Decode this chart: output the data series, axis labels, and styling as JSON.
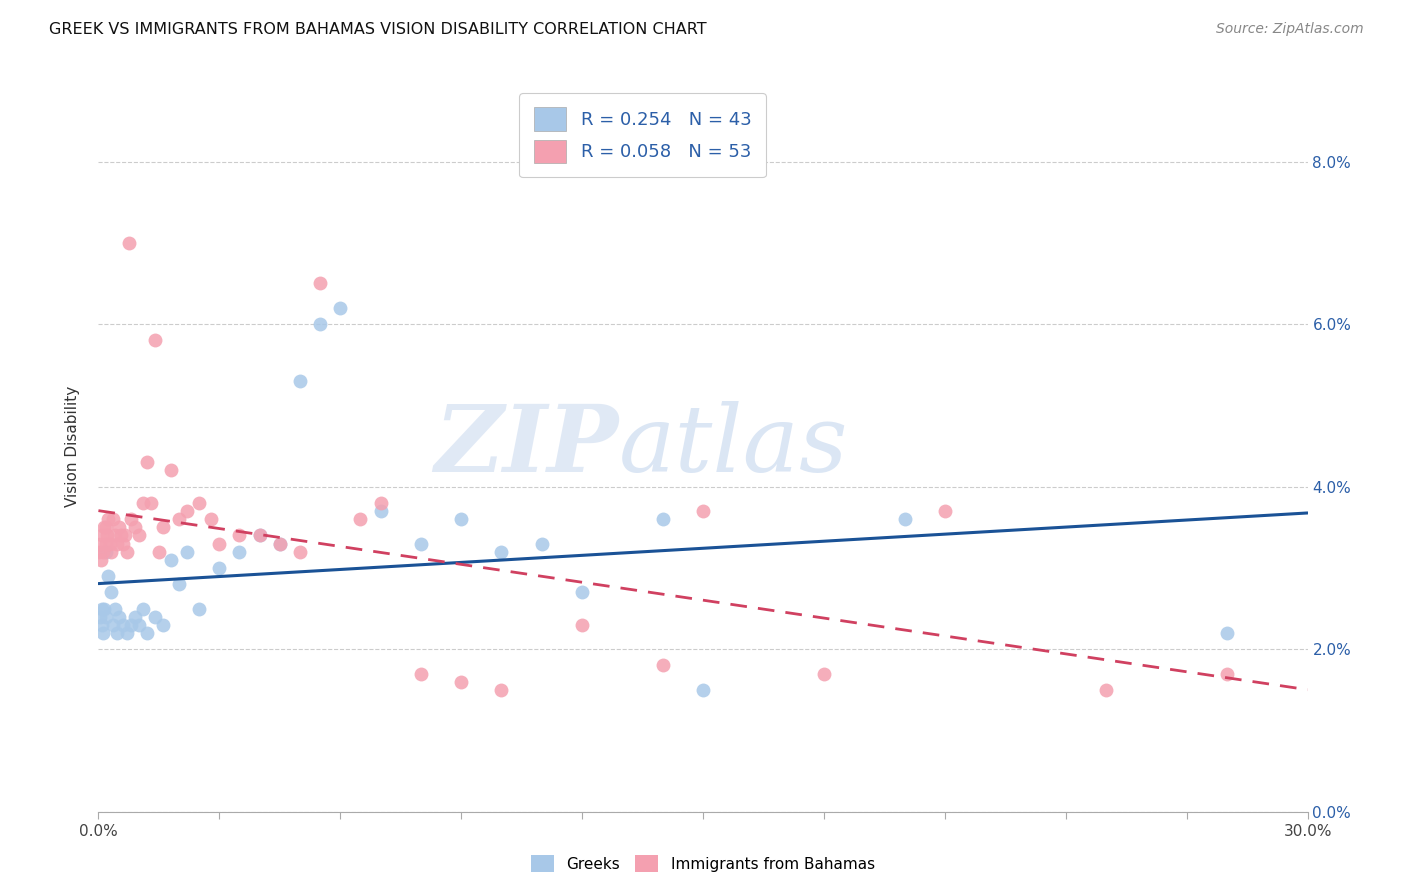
{
  "title": "GREEK VS IMMIGRANTS FROM BAHAMAS VISION DISABILITY CORRELATION CHART",
  "source": "Source: ZipAtlas.com",
  "ylabel": "Vision Disability",
  "xlim": [
    0.0,
    30.0
  ],
  "ylim": [
    0.0,
    9.0
  ],
  "yticks": [
    0.0,
    2.0,
    4.0,
    6.0,
    8.0
  ],
  "watermark_zip": "ZIP",
  "watermark_atlas": "atlas",
  "blue_scatter_color": "#a8c8e8",
  "pink_scatter_color": "#f4a0b0",
  "blue_line_color": "#1a5296",
  "pink_line_color": "#d04060",
  "legend_blue_color": "#a8c8e8",
  "legend_pink_color": "#f4a0b0",
  "greek_x": [
    0.05,
    0.08,
    0.1,
    0.12,
    0.15,
    0.18,
    0.2,
    0.25,
    0.3,
    0.35,
    0.4,
    0.45,
    0.5,
    0.6,
    0.7,
    0.8,
    0.9,
    1.0,
    1.1,
    1.2,
    1.4,
    1.6,
    1.8,
    2.0,
    2.2,
    2.5,
    3.0,
    3.5,
    4.0,
    4.5,
    5.0,
    5.5,
    6.0,
    7.0,
    8.0,
    9.0,
    10.0,
    11.0,
    12.0,
    14.0,
    15.0,
    20.0,
    28.0
  ],
  "greek_y": [
    2.4,
    2.5,
    2.3,
    2.2,
    2.5,
    2.4,
    3.2,
    2.9,
    2.7,
    2.3,
    2.5,
    2.2,
    2.4,
    2.3,
    2.2,
    2.3,
    2.4,
    2.3,
    2.5,
    2.2,
    2.4,
    2.3,
    3.1,
    2.8,
    3.2,
    2.5,
    3.0,
    3.2,
    3.4,
    3.3,
    5.3,
    6.0,
    6.2,
    3.7,
    3.3,
    3.6,
    3.2,
    3.3,
    2.7,
    3.6,
    1.5,
    3.6,
    2.2
  ],
  "bahamas_x": [
    0.02,
    0.05,
    0.07,
    0.1,
    0.12,
    0.15,
    0.18,
    0.2,
    0.22,
    0.25,
    0.28,
    0.3,
    0.35,
    0.4,
    0.45,
    0.5,
    0.55,
    0.6,
    0.65,
    0.7,
    0.75,
    0.8,
    0.9,
    1.0,
    1.1,
    1.2,
    1.3,
    1.4,
    1.5,
    1.6,
    1.8,
    2.0,
    2.2,
    2.5,
    2.8,
    3.0,
    3.5,
    4.0,
    4.5,
    5.0,
    5.5,
    6.5,
    7.0,
    8.0,
    9.0,
    10.0,
    12.0,
    14.0,
    15.0,
    18.0,
    21.0,
    25.0,
    28.0
  ],
  "bahamas_y": [
    3.2,
    3.3,
    3.1,
    3.4,
    3.2,
    3.5,
    3.3,
    3.5,
    3.4,
    3.6,
    3.3,
    3.2,
    3.6,
    3.4,
    3.3,
    3.5,
    3.4,
    3.3,
    3.4,
    3.2,
    7.0,
    3.6,
    3.5,
    3.4,
    3.8,
    4.3,
    3.8,
    5.8,
    3.2,
    3.5,
    4.2,
    3.6,
    3.7,
    3.8,
    3.6,
    3.3,
    3.4,
    3.4,
    3.3,
    3.2,
    6.5,
    3.6,
    3.8,
    1.7,
    1.6,
    1.5,
    2.3,
    1.8,
    3.7,
    1.7,
    3.7,
    1.5,
    1.7
  ]
}
